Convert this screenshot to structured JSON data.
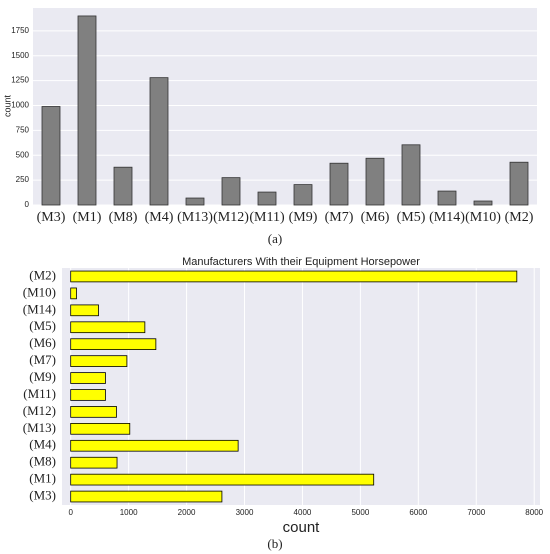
{
  "chart_data": [
    {
      "type": "bar",
      "orientation": "vertical",
      "ylabel": "count",
      "caption": "(a)",
      "categories": [
        "(M3)",
        "(M1)",
        "(M8)",
        "(M4)",
        "(M13)",
        "(M12)",
        "(M11)",
        "(M9)",
        "(M7)",
        "(M6)",
        "(M5)",
        "(M14)",
        "(M10)",
        "(M2)"
      ],
      "values": [
        990,
        1900,
        380,
        1280,
        70,
        275,
        130,
        205,
        420,
        470,
        605,
        140,
        40,
        430
      ],
      "color": "#808080",
      "edgecolor": "#333333",
      "ylim": [
        0,
        1980
      ],
      "yticks": [
        0,
        250,
        500,
        750,
        1000,
        1250,
        1500,
        1750
      ],
      "grid": true
    },
    {
      "type": "bar",
      "orientation": "horizontal",
      "title": "Manufacturers With their Equipment Horsepower",
      "xlabel": "count",
      "caption": "(b)",
      "categories": [
        "(M2)",
        "(M10)",
        "(M14)",
        "(M5)",
        "(M6)",
        "(M7)",
        "(M9)",
        "(M11)",
        "(M12)",
        "(M13)",
        "(M4)",
        "(M8)",
        "(M1)",
        "(M3)"
      ],
      "values": [
        7700,
        100,
        480,
        1280,
        1470,
        970,
        600,
        600,
        790,
        1020,
        2890,
        800,
        5230,
        2610
      ],
      "color": "#ffff00",
      "edgecolor": "#000000",
      "xlim": [
        -150,
        8100
      ],
      "xticks": [
        0,
        1000,
        2000,
        3000,
        4000,
        5000,
        6000,
        7000,
        8000
      ],
      "grid": true
    }
  ]
}
